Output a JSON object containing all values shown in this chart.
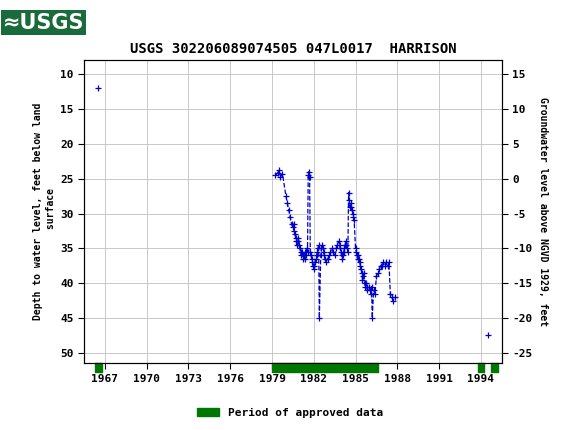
{
  "title": "USGS 302206089074505 047L0017  HARRISON",
  "ylabel_left": "Depth to water level, feet below land\n surface",
  "ylabel_right": "Groundwater level above NGVD 1929, feet",
  "xlim": [
    1965.5,
    1995.5
  ],
  "ylim_left": [
    51.5,
    8.0
  ],
  "ylim_right": [
    -26.5,
    17.0
  ],
  "xticks": [
    1967,
    1970,
    1973,
    1976,
    1979,
    1982,
    1985,
    1988,
    1991,
    1994
  ],
  "yticks_left": [
    10,
    15,
    20,
    25,
    30,
    35,
    40,
    45,
    50
  ],
  "yticks_right": [
    15,
    10,
    5,
    0,
    -5,
    -10,
    -15,
    -20,
    -25
  ],
  "header_color": "#1a6b3c",
  "bg_color": "#ffffff",
  "grid_color": "#c0c0c0",
  "data_color": "#0000cc",
  "approved_color": "#007700",
  "approved_segments": [
    {
      "x_start": 1966.3,
      "x_end": 1966.8
    },
    {
      "x_start": 1979.0,
      "x_end": 1986.6
    },
    {
      "x_start": 1993.8,
      "x_end": 1994.2
    },
    {
      "x_start": 1994.7,
      "x_end": 1995.2
    }
  ],
  "isolated_points_unconnected": [
    [
      1966.5,
      12.0
    ],
    [
      1994.5,
      47.5
    ]
  ],
  "data_segments": [
    {
      "connected": true,
      "points": [
        [
          1979.25,
          24.5
        ],
        [
          1979.4,
          24.2
        ],
        [
          1979.5,
          23.8
        ],
        [
          1979.6,
          24.8
        ],
        [
          1979.75,
          24.3
        ],
        [
          1980.0,
          27.5
        ],
        [
          1980.1,
          28.5
        ],
        [
          1980.2,
          29.5
        ],
        [
          1980.3,
          30.5
        ],
        [
          1980.4,
          31.5
        ],
        [
          1980.5,
          32.0
        ],
        [
          1980.55,
          31.5
        ],
        [
          1980.6,
          32.5
        ],
        [
          1980.65,
          33.0
        ],
        [
          1980.7,
          33.5
        ],
        [
          1980.75,
          34.0
        ],
        [
          1980.8,
          34.5
        ],
        [
          1980.85,
          34.0
        ],
        [
          1980.9,
          33.5
        ],
        [
          1980.95,
          34.5
        ],
        [
          1981.0,
          35.0
        ],
        [
          1981.05,
          35.5
        ],
        [
          1981.1,
          36.0
        ],
        [
          1981.15,
          35.5
        ],
        [
          1981.2,
          36.0
        ],
        [
          1981.25,
          36.5
        ],
        [
          1981.3,
          36.0
        ],
        [
          1981.35,
          36.5
        ],
        [
          1981.4,
          35.5
        ],
        [
          1981.45,
          36.0
        ],
        [
          1981.5,
          35.0
        ],
        [
          1981.55,
          35.5
        ],
        [
          1981.6,
          24.5
        ],
        [
          1981.65,
          24.0
        ],
        [
          1981.7,
          24.8
        ],
        [
          1981.75,
          35.5
        ],
        [
          1981.8,
          36.0
        ],
        [
          1981.85,
          36.5
        ],
        [
          1981.9,
          37.0
        ],
        [
          1981.95,
          37.5
        ],
        [
          1982.0,
          38.0
        ],
        [
          1982.05,
          37.5
        ],
        [
          1982.1,
          37.0
        ],
        [
          1982.15,
          36.5
        ],
        [
          1982.2,
          36.0
        ],
        [
          1982.25,
          35.5
        ],
        [
          1982.3,
          35.0
        ],
        [
          1982.35,
          34.5
        ],
        [
          1982.4,
          45.0
        ],
        [
          1982.5,
          36.0
        ],
        [
          1982.55,
          35.0
        ],
        [
          1982.6,
          34.5
        ],
        [
          1982.65,
          35.0
        ],
        [
          1982.7,
          35.5
        ],
        [
          1982.75,
          36.0
        ],
        [
          1982.8,
          36.5
        ],
        [
          1982.9,
          37.0
        ],
        [
          1983.0,
          36.5
        ],
        [
          1983.1,
          36.0
        ],
        [
          1983.2,
          35.5
        ],
        [
          1983.3,
          35.0
        ],
        [
          1983.4,
          35.5
        ],
        [
          1983.5,
          36.0
        ],
        [
          1983.6,
          35.0
        ],
        [
          1983.7,
          34.5
        ],
        [
          1983.8,
          34.0
        ],
        [
          1983.85,
          34.5
        ],
        [
          1983.9,
          35.0
        ],
        [
          1983.95,
          35.5
        ],
        [
          1984.0,
          36.0
        ],
        [
          1984.05,
          36.5
        ],
        [
          1984.1,
          36.0
        ],
        [
          1984.15,
          35.5
        ],
        [
          1984.2,
          35.0
        ],
        [
          1984.25,
          34.5
        ],
        [
          1984.3,
          34.0
        ],
        [
          1984.35,
          34.5
        ],
        [
          1984.4,
          35.0
        ],
        [
          1984.45,
          35.5
        ],
        [
          1984.5,
          27.0
        ],
        [
          1984.55,
          28.0
        ],
        [
          1984.6,
          29.0
        ],
        [
          1984.65,
          28.5
        ],
        [
          1984.7,
          29.0
        ],
        [
          1984.75,
          29.5
        ],
        [
          1984.8,
          30.0
        ],
        [
          1984.85,
          30.5
        ],
        [
          1984.9,
          31.0
        ],
        [
          1985.0,
          35.0
        ],
        [
          1985.05,
          35.5
        ],
        [
          1985.1,
          36.0
        ],
        [
          1985.15,
          36.5
        ],
        [
          1985.2,
          36.0
        ],
        [
          1985.25,
          36.5
        ],
        [
          1985.3,
          37.0
        ],
        [
          1985.35,
          37.5
        ],
        [
          1985.4,
          38.0
        ],
        [
          1985.45,
          38.5
        ],
        [
          1985.5,
          39.5
        ],
        [
          1985.55,
          39.0
        ],
        [
          1985.6,
          38.5
        ],
        [
          1985.65,
          40.0
        ],
        [
          1985.7,
          40.5
        ],
        [
          1985.75,
          40.0
        ],
        [
          1985.8,
          40.5
        ],
        [
          1985.85,
          41.0
        ],
        [
          1986.0,
          40.5
        ],
        [
          1986.05,
          41.0
        ],
        [
          1986.1,
          41.5
        ],
        [
          1986.15,
          40.5
        ],
        [
          1986.2,
          45.0
        ],
        [
          1986.3,
          41.0
        ],
        [
          1986.4,
          41.5
        ],
        [
          1986.5,
          39.0
        ],
        [
          1986.6,
          38.5
        ]
      ]
    },
    {
      "connected": true,
      "points": [
        [
          1986.7,
          38.0
        ],
        [
          1986.8,
          37.5
        ],
        [
          1986.9,
          37.5
        ],
        [
          1987.0,
          37.0
        ],
        [
          1987.1,
          37.5
        ],
        [
          1987.2,
          37.0
        ],
        [
          1987.3,
          37.5
        ],
        [
          1987.4,
          37.0
        ],
        [
          1987.5,
          41.5
        ],
        [
          1987.6,
          42.0
        ],
        [
          1987.7,
          42.5
        ],
        [
          1987.8,
          42.0
        ]
      ]
    }
  ],
  "legend_label": "Period of approved data",
  "marker_size": 4,
  "line_width": 0.9
}
